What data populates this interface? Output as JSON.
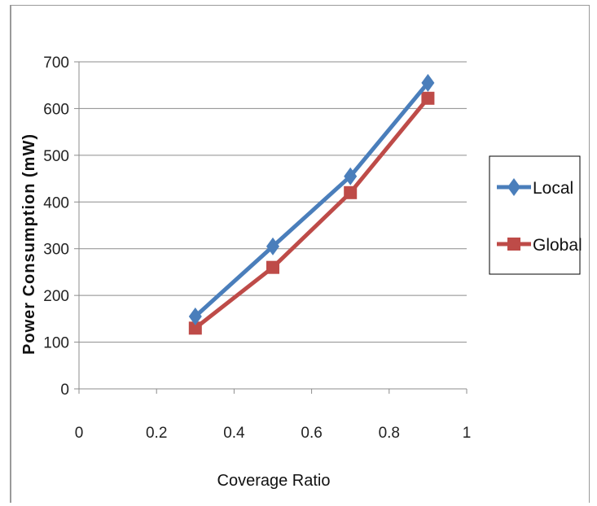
{
  "chart_data": {
    "type": "line",
    "x": [
      0.3,
      0.5,
      0.7,
      0.9
    ],
    "series": [
      {
        "name": "Local",
        "values": [
          155,
          305,
          455,
          655
        ],
        "color": "#4a7ebb",
        "marker": "diamond"
      },
      {
        "name": "Global",
        "values": [
          130,
          260,
          420,
          622
        ],
        "color": "#be4b48",
        "marker": "square"
      }
    ],
    "xlabel": "Coverage Ratio",
    "ylabel": "Power Consumption (mW)",
    "xlim": [
      0,
      1
    ],
    "ylim": [
      0,
      700
    ],
    "xticks": [
      "0",
      "0.2",
      "0.4",
      "0.6",
      "0.8",
      "1"
    ],
    "yticks": [
      "0",
      "100",
      "200",
      "300",
      "400",
      "500",
      "600",
      "700"
    ],
    "grid": "horizontal",
    "legend_position": "right"
  }
}
